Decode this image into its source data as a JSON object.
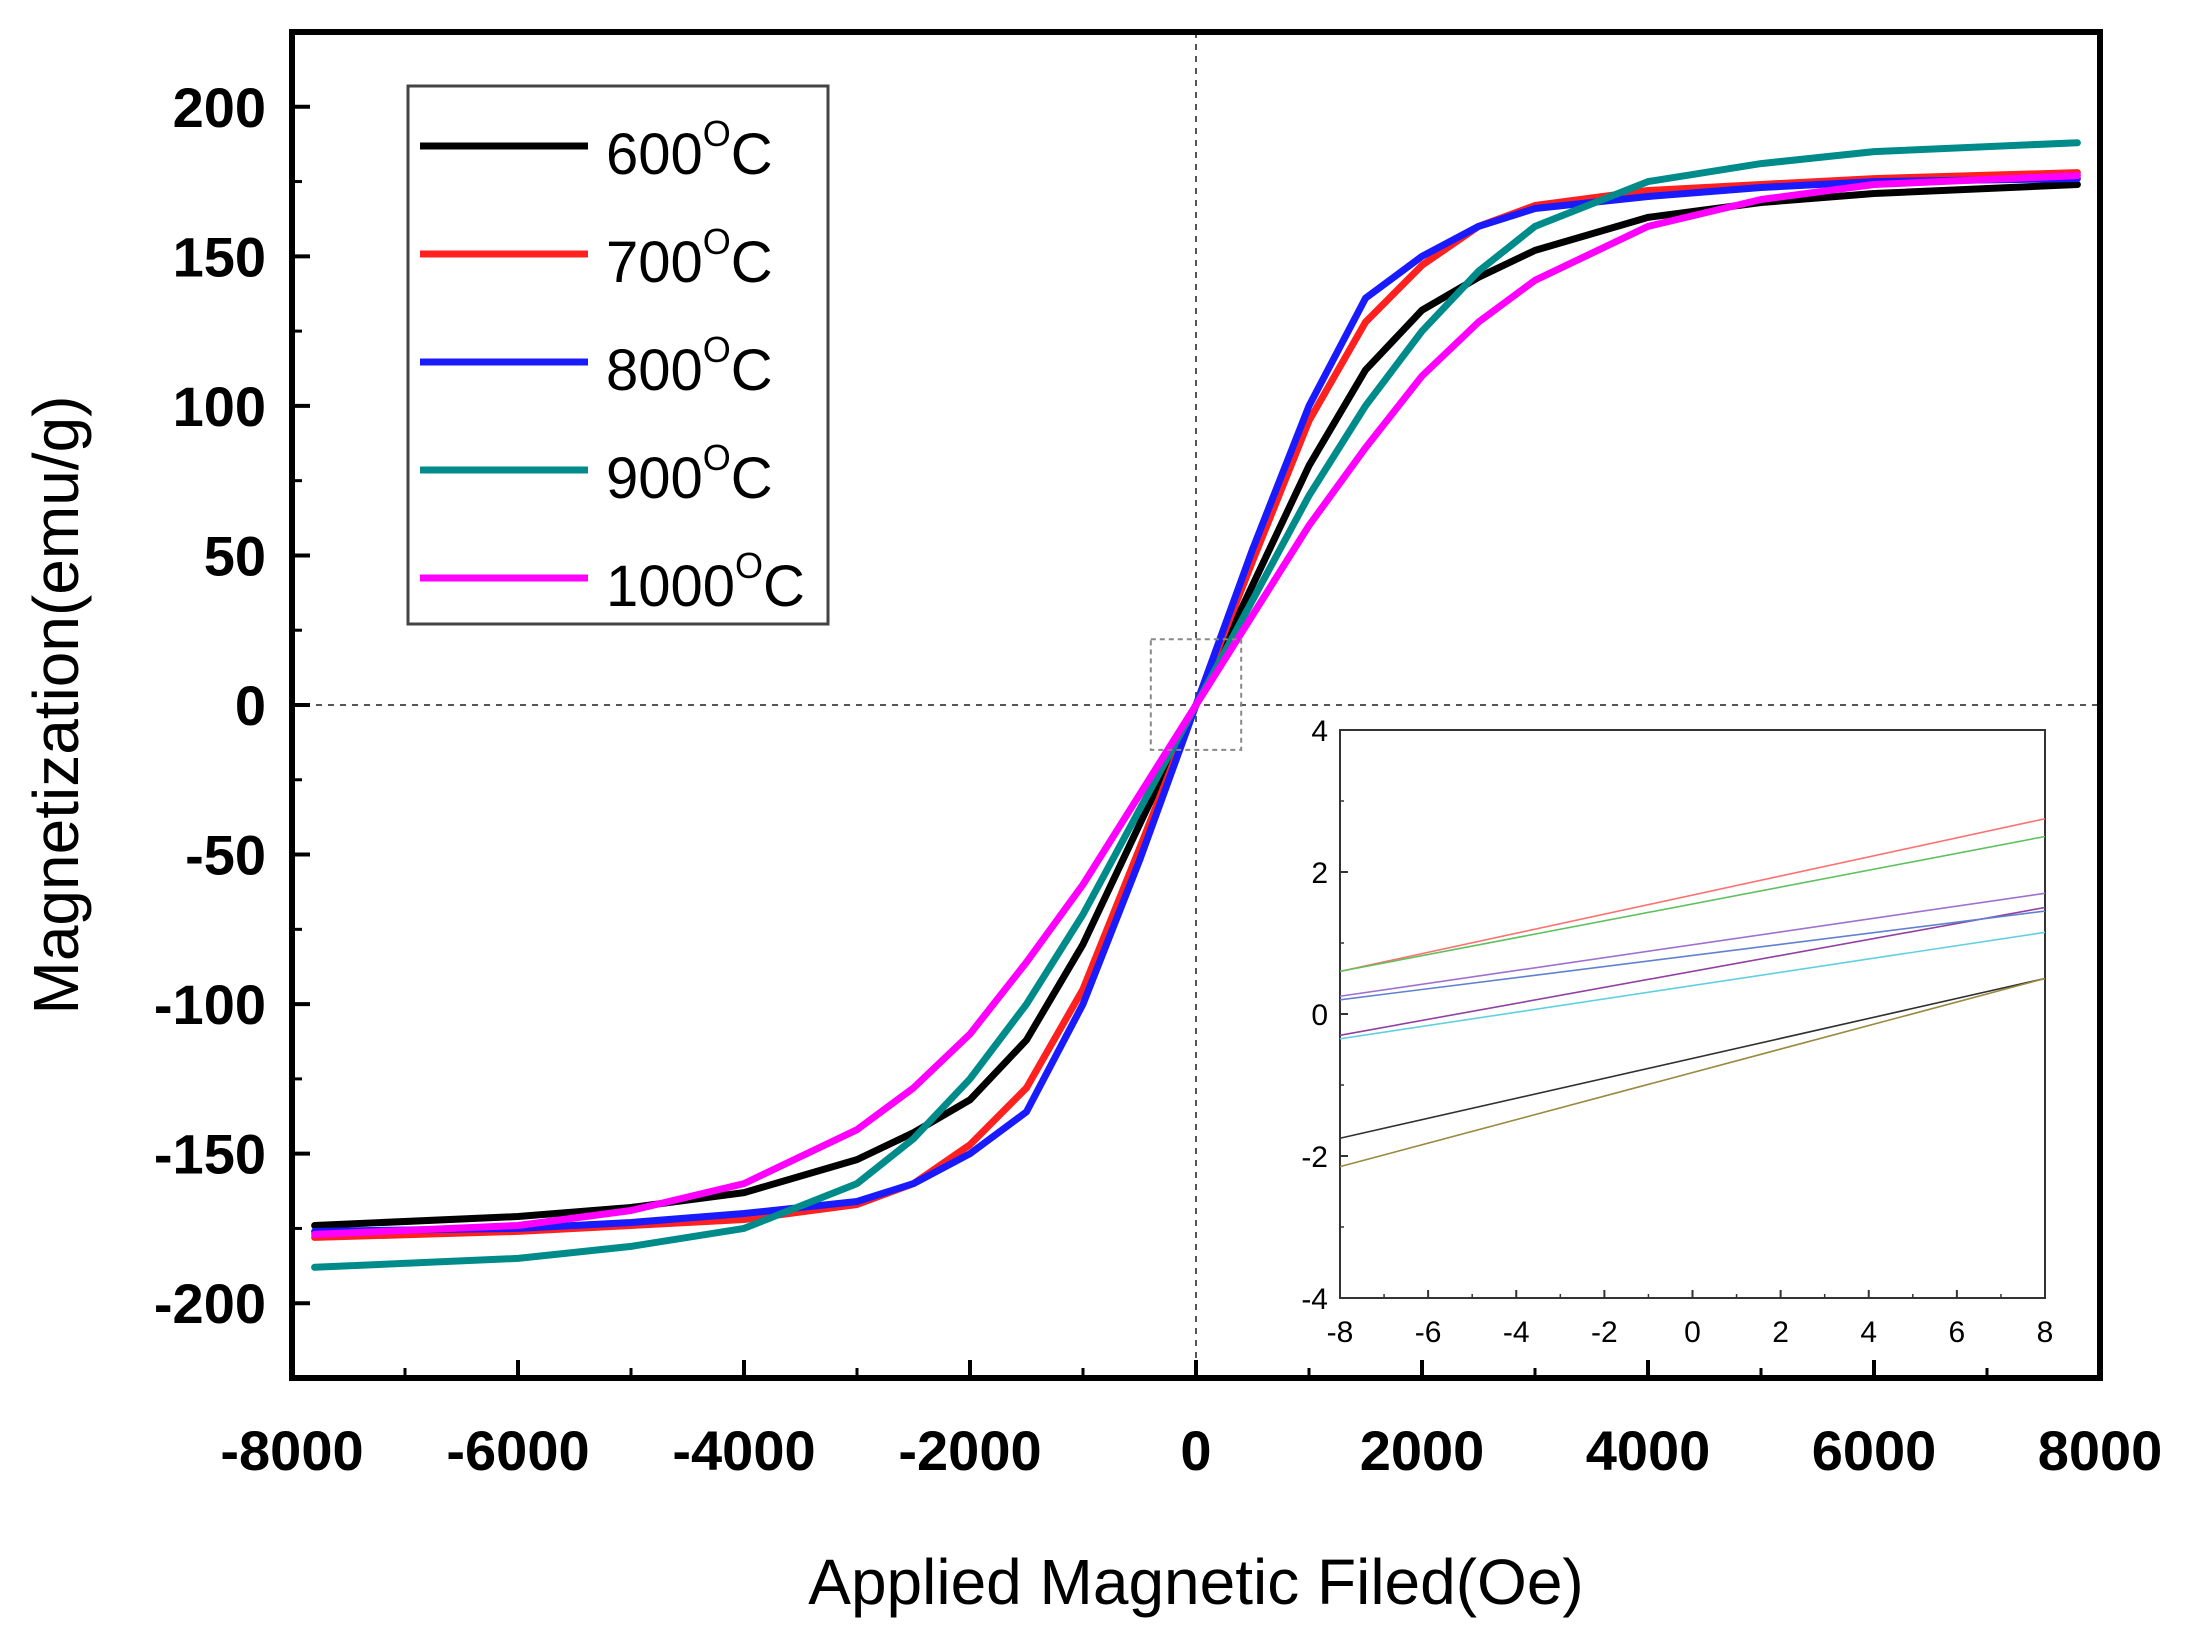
{
  "chart_data": [
    {
      "type": "line",
      "title": "",
      "xlabel": "Applied Magnetic Filed(Oe)",
      "ylabel": "Magnetization(emu/g)",
      "xlim": [
        -8000,
        8000
      ],
      "ylim": [
        -225,
        225
      ],
      "xticks": [
        -8000,
        -6000,
        -4000,
        -2000,
        0,
        2000,
        4000,
        6000,
        8000
      ],
      "yticks": [
        200,
        150,
        100,
        50,
        0,
        -50,
        -100,
        -150,
        -200
      ],
      "legend_position": "top-left",
      "reference_lines": [
        "x=0 dashed",
        "y=0 dashed"
      ],
      "x": [
        -7800,
        -6000,
        -5000,
        -4000,
        -3000,
        -2500,
        -2000,
        -1500,
        -1000,
        -500,
        0,
        500,
        1000,
        1500,
        2000,
        2500,
        3000,
        4000,
        5000,
        6000,
        7800
      ],
      "series": [
        {
          "name": "600",
          "unit": "C",
          "color": "#000000",
          "values": [
            -174,
            -171,
            -168,
            -163,
            -152,
            -143,
            -132,
            -112,
            -80,
            -40,
            0,
            40,
            80,
            112,
            132,
            143,
            152,
            163,
            168,
            171,
            174
          ]
        },
        {
          "name": "700",
          "unit": "C",
          "color": "#ff2020",
          "values": [
            -178,
            -176,
            -174,
            -172,
            -167,
            -160,
            -147,
            -128,
            -95,
            -48,
            0,
            48,
            95,
            128,
            147,
            160,
            167,
            172,
            174,
            176,
            178
          ]
        },
        {
          "name": "800",
          "unit": "C",
          "color": "#1a1aff",
          "values": [
            -176,
            -175,
            -173,
            -170,
            -166,
            -160,
            -150,
            -136,
            -100,
            -52,
            0,
            52,
            100,
            136,
            150,
            160,
            166,
            170,
            173,
            175,
            176
          ]
        },
        {
          "name": "900",
          "unit": "C",
          "color": "#008b8b",
          "values": [
            -188,
            -185,
            -181,
            -175,
            -160,
            -145,
            -125,
            -100,
            -70,
            -35,
            0,
            35,
            70,
            100,
            125,
            145,
            160,
            175,
            181,
            185,
            188
          ]
        },
        {
          "name": "1000",
          "unit": "C",
          "color": "#ff00ff",
          "values": [
            -177,
            -174,
            -169,
            -160,
            -142,
            -128,
            -110,
            -86,
            -60,
            -30,
            0,
            30,
            60,
            86,
            110,
            128,
            142,
            160,
            169,
            174,
            177
          ]
        }
      ]
    },
    {
      "type": "line",
      "title": "inset",
      "xlim": [
        -8,
        8
      ],
      "ylim": [
        -4,
        4
      ],
      "xticks": [
        -8,
        -6,
        -4,
        -2,
        0,
        2,
        4,
        6,
        8
      ],
      "yticks": [
        4,
        2,
        0,
        -2,
        -4
      ],
      "x": [
        -8,
        8
      ],
      "series": [
        {
          "name": "red",
          "color": "#ff7070",
          "values": [
            0.6,
            2.75
          ]
        },
        {
          "name": "green",
          "color": "#60c060",
          "values": [
            0.6,
            2.5
          ]
        },
        {
          "name": "violet",
          "color": "#a070d0",
          "values": [
            0.25,
            1.7
          ]
        },
        {
          "name": "purple",
          "color": "#9040a0",
          "values": [
            -0.3,
            1.5
          ]
        },
        {
          "name": "cyan",
          "color": "#60d0e0",
          "values": [
            -0.35,
            1.15
          ]
        },
        {
          "name": "blue",
          "color": "#6080d0",
          "values": [
            0.2,
            1.45
          ]
        },
        {
          "name": "black",
          "color": "#303030",
          "values": [
            -1.75,
            0.5
          ]
        },
        {
          "name": "olive",
          "color": "#9a8a40",
          "values": [
            -2.15,
            0.5
          ]
        }
      ]
    }
  ]
}
